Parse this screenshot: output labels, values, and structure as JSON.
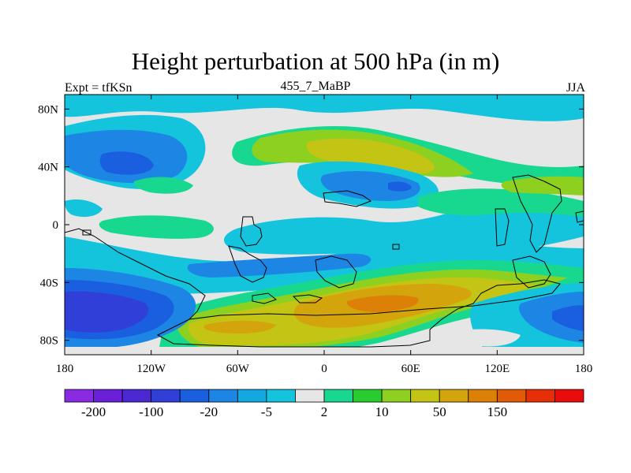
{
  "chart_data": {
    "type": "heatmap",
    "title": "Height perturbation at 500 hPa (in m)",
    "left_string": "Expt = tfKSn",
    "center_string": "455_7_MaBP",
    "right_string": "JJA",
    "x_ticks": [
      "180",
      "120W",
      "60W",
      "0",
      "60E",
      "120E",
      "180"
    ],
    "x_tick_values": [
      -180,
      -120,
      -60,
      0,
      60,
      120,
      180
    ],
    "y_ticks": [
      "80N",
      "40N",
      "0",
      "40S",
      "80S"
    ],
    "y_tick_values": [
      80,
      40,
      0,
      -40,
      -80
    ],
    "xlim": [
      -180,
      180
    ],
    "ylim": [
      -90,
      90
    ],
    "colorbar": {
      "colors": [
        "#8a2be2",
        "#6a1fd8",
        "#4b28d2",
        "#2f3fd8",
        "#1a5fe0",
        "#1d86e4",
        "#12a9e0",
        "#14c3dc",
        "#e6e6e6",
        "#18d890",
        "#28cc30",
        "#8ed020",
        "#c4c414",
        "#d4a40c",
        "#dc8008",
        "#e05a08",
        "#e62e08",
        "#e80c0c"
      ],
      "labels": [
        "-200",
        "-100",
        "-20",
        "-5",
        "2",
        "10",
        "50",
        "150"
      ],
      "label_boundaries": [
        1,
        3,
        5,
        7,
        9,
        11,
        13,
        15
      ]
    }
  }
}
